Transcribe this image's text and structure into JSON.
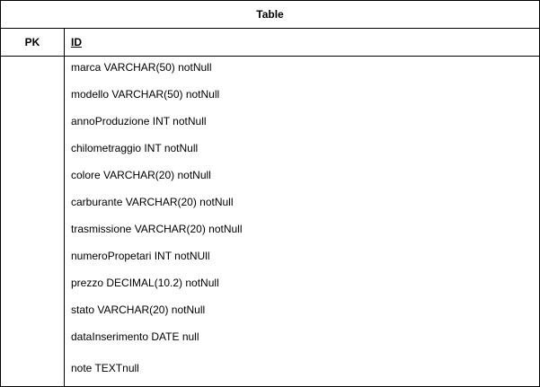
{
  "table": {
    "title": "Table",
    "key_label": "PK",
    "primary_key": "ID",
    "attributes": [
      "marca VARCHAR(50) notNull",
      "modello VARCHAR(50) notNull",
      "annoProduzione INT notNull",
      "chilometraggio INT notNull",
      "colore VARCHAR(20) notNull",
      "carburante VARCHAR(20) notNull",
      "trasmissione VARCHAR(20) notNull",
      "numeroPropetari INT notNUll",
      "prezzo DECIMAL(10.2) notNull",
      "stato VARCHAR(20) notNull",
      "dataInserimento DATE null",
      "note TEXTnull"
    ]
  }
}
